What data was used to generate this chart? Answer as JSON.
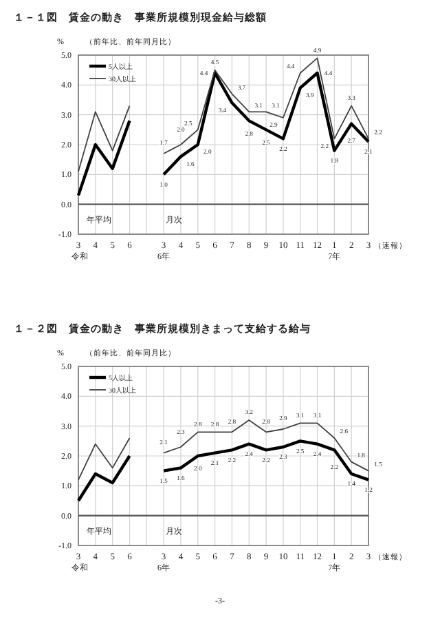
{
  "chart_data": [
    {
      "type": "line",
      "title": "１－１図　賃金の動き　事業所規模別現金給与総額",
      "subtitle": "（前年比、前年同月比）",
      "ylabel": "%",
      "categories": [
        "3\n令和",
        "4",
        "5",
        "6",
        null,
        "3\n6年",
        "4",
        "5",
        "6",
        "7",
        "8",
        "9",
        "10",
        "11",
        "12",
        "1\n7年",
        "2",
        "3"
      ],
      "series": [
        {
          "name": "5人以上",
          "color": "#000000",
          "values": [
            0.3,
            2.0,
            1.2,
            2.8,
            null,
            1.0,
            1.6,
            2.0,
            4.4,
            3.4,
            2.8,
            2.5,
            2.2,
            3.9,
            4.4,
            1.8,
            2.7,
            2.1
          ],
          "value_labels": [
            null,
            null,
            null,
            null,
            null,
            "1.0",
            "1.6",
            "2.0",
            "4.4",
            "3.4",
            "2.8",
            "2.5",
            "2.2",
            "3.9",
            "4.4",
            "1.8",
            "2.7",
            "2.1"
          ]
        },
        {
          "name": "30人以上",
          "color": "#404040",
          "values": [
            1.1,
            3.1,
            1.8,
            3.3,
            null,
            1.7,
            2.0,
            2.5,
            4.5,
            3.7,
            3.1,
            3.1,
            2.9,
            4.4,
            4.9,
            2.2,
            3.3,
            2.2
          ],
          "value_labels": [
            null,
            null,
            null,
            null,
            null,
            "1.7",
            "2.0",
            "2.5",
            "4.5",
            "3.7",
            "3.1",
            "3.1",
            "2.9",
            "4.4",
            "4.9",
            "2.2",
            "3.3",
            "2.2"
          ]
        }
      ],
      "ylim": [
        -1,
        5
      ],
      "yticks": [
        {
          "value": -1,
          "label": "-1.0"
        },
        {
          "value": 0,
          "label": "0.0"
        },
        {
          "value": 1,
          "label": "1.0"
        },
        {
          "value": 2,
          "label": "2.0"
        },
        {
          "value": 3,
          "label": "3.0"
        },
        {
          "value": 4,
          "label": "4.0"
        },
        {
          "value": 5,
          "label": "5.0"
        }
      ],
      "grid": true,
      "legend": "top left",
      "ref_lines": [
        {
          "axis": "y",
          "value": 0,
          "color": "#555555"
        }
      ],
      "annotations": [
        "年平均",
        "月次",
        "（速報）"
      ]
    },
    {
      "type": "line",
      "title": "１－２図　賃金の動き　事業所規模別きまって支給する給与",
      "subtitle": "（前年比、前年同月比）",
      "ylabel": "%",
      "categories": [
        "3\n令和",
        "4",
        "5",
        "6",
        null,
        "3\n6年",
        "4",
        "5",
        "6",
        "7",
        "8",
        "9",
        "10",
        "11",
        "12",
        "1\n7年",
        "2",
        "3"
      ],
      "series": [
        {
          "name": "5人以上",
          "color": "#000000",
          "values": [
            0.5,
            1.4,
            1.1,
            2.0,
            null,
            1.5,
            1.6,
            2.0,
            2.1,
            2.2,
            2.4,
            2.2,
            2.3,
            2.5,
            2.4,
            2.2,
            1.4,
            1.2
          ],
          "value_labels": [
            null,
            null,
            null,
            null,
            null,
            "1.5",
            "1.6",
            "2.0",
            "2.1",
            "2.2",
            "2.4",
            "2.2",
            "2.3",
            "2.5",
            "2.4",
            "2.2",
            "1.4",
            "1.2"
          ]
        },
        {
          "name": "30人以上",
          "color": "#404040",
          "values": [
            1.2,
            2.4,
            1.6,
            2.6,
            null,
            2.1,
            2.3,
            2.8,
            2.8,
            2.8,
            3.2,
            2.8,
            2.9,
            3.1,
            3.1,
            2.6,
            1.8,
            1.5
          ],
          "value_labels": [
            null,
            null,
            null,
            null,
            null,
            "2.1",
            "2.3",
            "2.8",
            "2.8",
            "2.8",
            "3.2",
            "2.8",
            "2.9",
            "3.1",
            "3.1",
            "2.6",
            "1.8",
            "1.5"
          ]
        }
      ],
      "ylim": [
        -1,
        5
      ],
      "yticks": [
        {
          "value": -1,
          "label": "-1.0"
        },
        {
          "value": 0,
          "label": "0.0"
        },
        {
          "value": 1,
          "label": "1.0"
        },
        {
          "value": 2,
          "label": "2.0"
        },
        {
          "value": 3,
          "label": "3.0"
        },
        {
          "value": 4,
          "label": "4.0"
        },
        {
          "value": 5,
          "label": "5.0"
        }
      ],
      "grid": true,
      "legend": "top left",
      "ref_lines": [
        {
          "axis": "y",
          "value": 0,
          "color": "#555555"
        }
      ],
      "annotations": [
        "年平均",
        "月次",
        "（速報）",
        "-3-"
      ]
    }
  ]
}
